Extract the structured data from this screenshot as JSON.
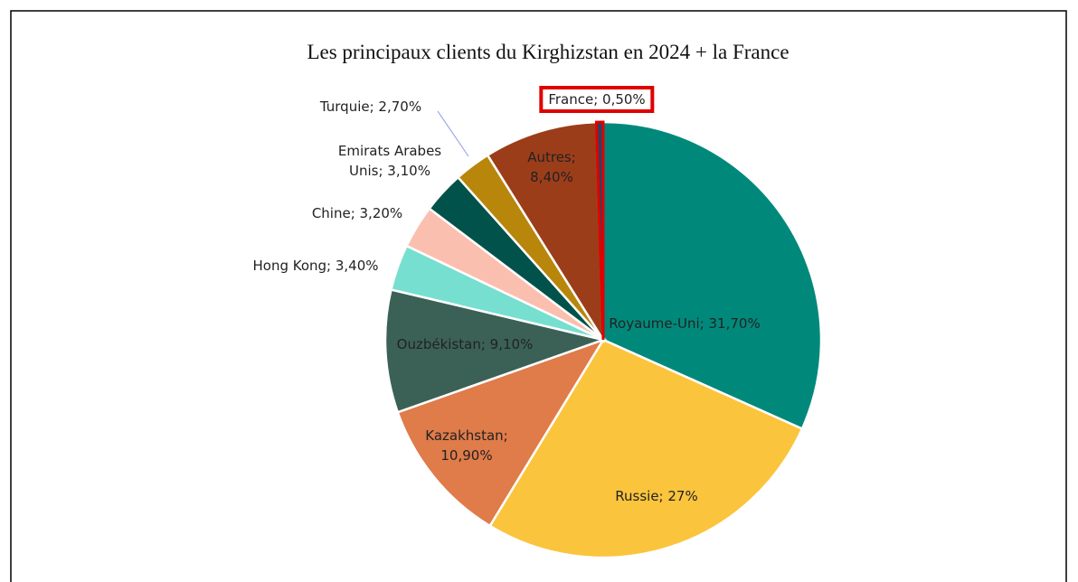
{
  "chart_data": {
    "type": "pie",
    "title": "Les principaux clients du Kirghizstan en 2024 + la France",
    "values": [
      31.7,
      27,
      10.9,
      9.1,
      3.4,
      3.2,
      3.1,
      2.7,
      8.4,
      0.5
    ],
    "value_labels": [
      "Royaume-Uni; 31,70%",
      "Russie; 27%",
      "Kazakhstan; 10,90%",
      "Ouzbékistan; 9,10%",
      "Hong Kong; 3,40%",
      "Chine; 3,20%",
      "Emirats Arabes Unis; 3,10%",
      "Turquie; 2,70%",
      "Autres; 8,40%",
      "France; 0,50%"
    ],
    "colors": [
      "#00897b",
      "#fbc43d",
      "#e07b4a",
      "#3b6157",
      "#76dfd0",
      "#fbbfb0",
      "#00524a",
      "#b8860b",
      "#9c3d1a",
      "#2f3f63"
    ]
  }
}
